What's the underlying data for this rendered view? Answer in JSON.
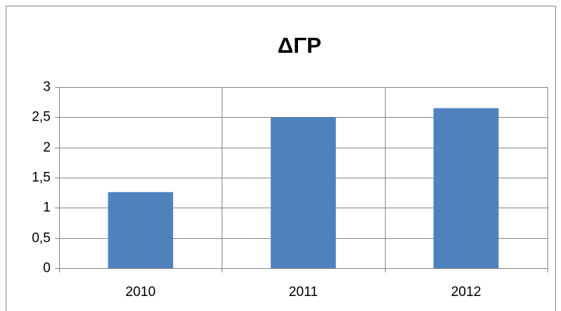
{
  "chart_data": {
    "type": "bar",
    "title": "ΔΓΡ",
    "categories": [
      "2010",
      "2011",
      "2012"
    ],
    "values": [
      1.26,
      2.5,
      2.65
    ],
    "color": "#4f81bd",
    "ylim": [
      0,
      3
    ],
    "yticks": [
      0,
      {
        "value": 0.5,
        "label": "0,5"
      },
      1,
      {
        "value": 1.5,
        "label": "1,5"
      },
      2,
      {
        "value": 2.5,
        "label": "2,5"
      },
      3
    ],
    "grid": true
  }
}
